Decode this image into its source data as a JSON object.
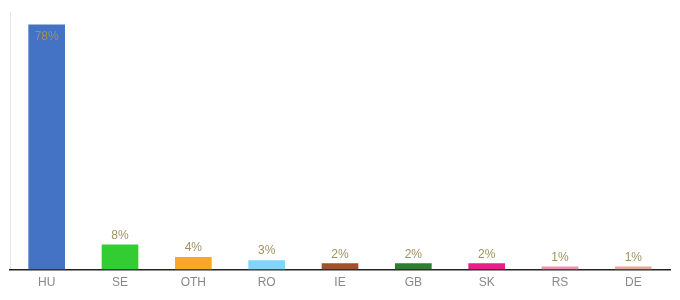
{
  "chart_data": {
    "type": "bar",
    "categories": [
      "HU",
      "SE",
      "OTH",
      "RO",
      "IE",
      "GB",
      "SK",
      "RS",
      "DE"
    ],
    "values": [
      78,
      8,
      4,
      3,
      2,
      2,
      2,
      1,
      1
    ],
    "value_labels": [
      "78%",
      "8%",
      "4%",
      "3%",
      "2%",
      "2%",
      "2%",
      "1%",
      "1%"
    ],
    "colors": [
      "#4472c4",
      "#33cc33",
      "#f9a825",
      "#81d4fa",
      "#a0522d",
      "#2e7d32",
      "#e91e8c",
      "#f48fb1",
      "#e8a898"
    ],
    "ylim": [
      0,
      82
    ],
    "grid": false,
    "data_labels": true,
    "tick_labels": "x"
  }
}
